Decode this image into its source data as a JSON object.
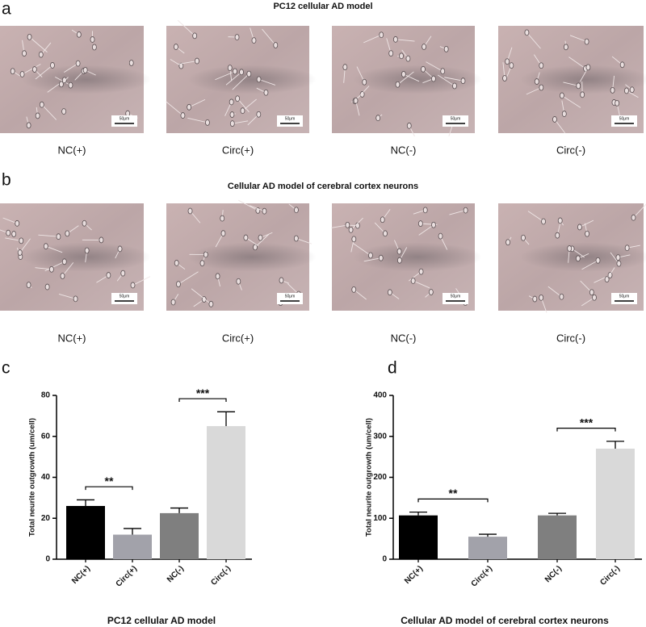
{
  "panels": [
    {
      "letter": "a",
      "title": "PC12 cellular AD model",
      "labels": [
        "NC(+)",
        "Circ(+)",
        "NC(-)",
        "Circ(-)"
      ]
    },
    {
      "letter": "b",
      "title": "Cellular AD model of cerebral cortex neurons",
      "labels": [
        "NC(+)",
        "Circ(+)",
        "NC(-)",
        "Circ(-)"
      ]
    }
  ],
  "scale_bar": "50μm",
  "chart_data": [
    {
      "type": "bar",
      "panel": "c",
      "caption": "PC12 cellular AD model",
      "y_label": "Total neurite outgrowth (um/cell)",
      "categories": [
        "NC(+)",
        "Circ(+)",
        "NC(-)",
        "Circ(-)"
      ],
      "values": [
        26,
        12,
        22.5,
        65
      ],
      "errors": [
        3,
        3,
        2.5,
        7
      ],
      "colors": [
        "#000000",
        "#a2a2aa",
        "#7f7f7f",
        "#d9d9d9"
      ],
      "ylim": [
        0,
        80
      ],
      "yticks": [
        0,
        20,
        40,
        60,
        80
      ],
      "annotations": [
        {
          "text": "**",
          "from": 0,
          "to": 1
        },
        {
          "text": "***",
          "from": 2,
          "to": 3
        }
      ]
    },
    {
      "type": "bar",
      "panel": "d",
      "caption": "Cellular AD model of cerebral cortex neurons",
      "y_label": "Total neurite outgrowth (um/cell)",
      "categories": [
        "NC(+)",
        "Circ(+)",
        "NC(-)",
        "Circ(-)"
      ],
      "values": [
        107,
        55,
        107,
        270
      ],
      "errors": [
        8,
        6,
        5,
        18
      ],
      "colors": [
        "#000000",
        "#a2a2aa",
        "#7f7f7f",
        "#d9d9d9"
      ],
      "ylim": [
        0,
        400
      ],
      "yticks": [
        0,
        100,
        200,
        300,
        400
      ],
      "annotations": [
        {
          "text": "**",
          "from": 0,
          "to": 1
        },
        {
          "text": "***",
          "from": 2,
          "to": 3
        }
      ]
    }
  ]
}
